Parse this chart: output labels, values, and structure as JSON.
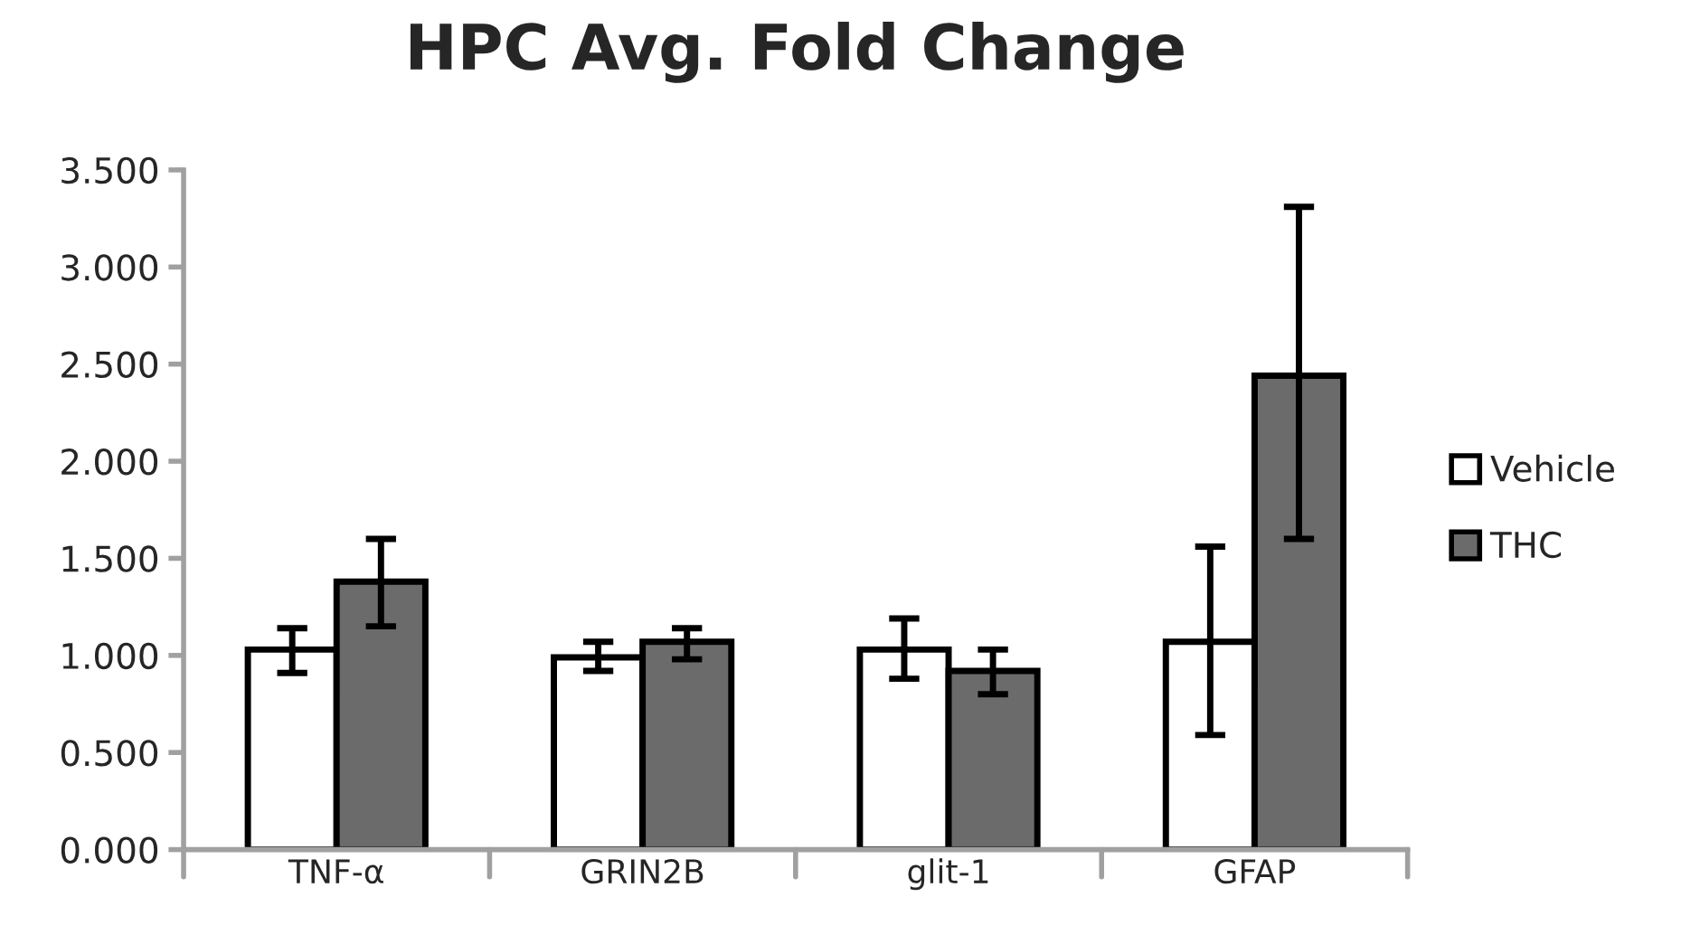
{
  "chart_data": {
    "type": "bar",
    "title": "HPC Avg. Fold Change",
    "categories": [
      "TNF-α",
      "GRIN2B",
      "glit-1",
      "GFAP"
    ],
    "series": [
      {
        "name": "Vehicle",
        "color": "#ffffff",
        "values": [
          1.03,
          0.99,
          1.03,
          1.07
        ],
        "errors": [
          [
            0.91,
            1.14
          ],
          [
            0.92,
            1.07
          ],
          [
            0.88,
            1.19
          ],
          [
            0.59,
            1.56
          ]
        ]
      },
      {
        "name": "THC",
        "color": "#6b6b6b",
        "values": [
          1.38,
          1.07,
          0.92,
          2.44
        ],
        "errors": [
          [
            1.15,
            1.6
          ],
          [
            0.98,
            1.14
          ],
          [
            0.8,
            1.03
          ],
          [
            1.6,
            3.31
          ]
        ]
      }
    ],
    "ylim": [
      0,
      3.5
    ],
    "yticks": [
      {
        "value": 0,
        "label": "0.000"
      },
      {
        "value": 0.5,
        "label": "0.500"
      },
      {
        "value": 1,
        "label": "1.000"
      },
      {
        "value": 1.5,
        "label": "1.500"
      },
      {
        "value": 2,
        "label": "2.000"
      },
      {
        "value": 2.5,
        "label": "2.500"
      },
      {
        "value": 3,
        "label": "3.000"
      },
      {
        "value": 3.5,
        "label": "3.500"
      }
    ],
    "grid": false,
    "legend": "right"
  }
}
